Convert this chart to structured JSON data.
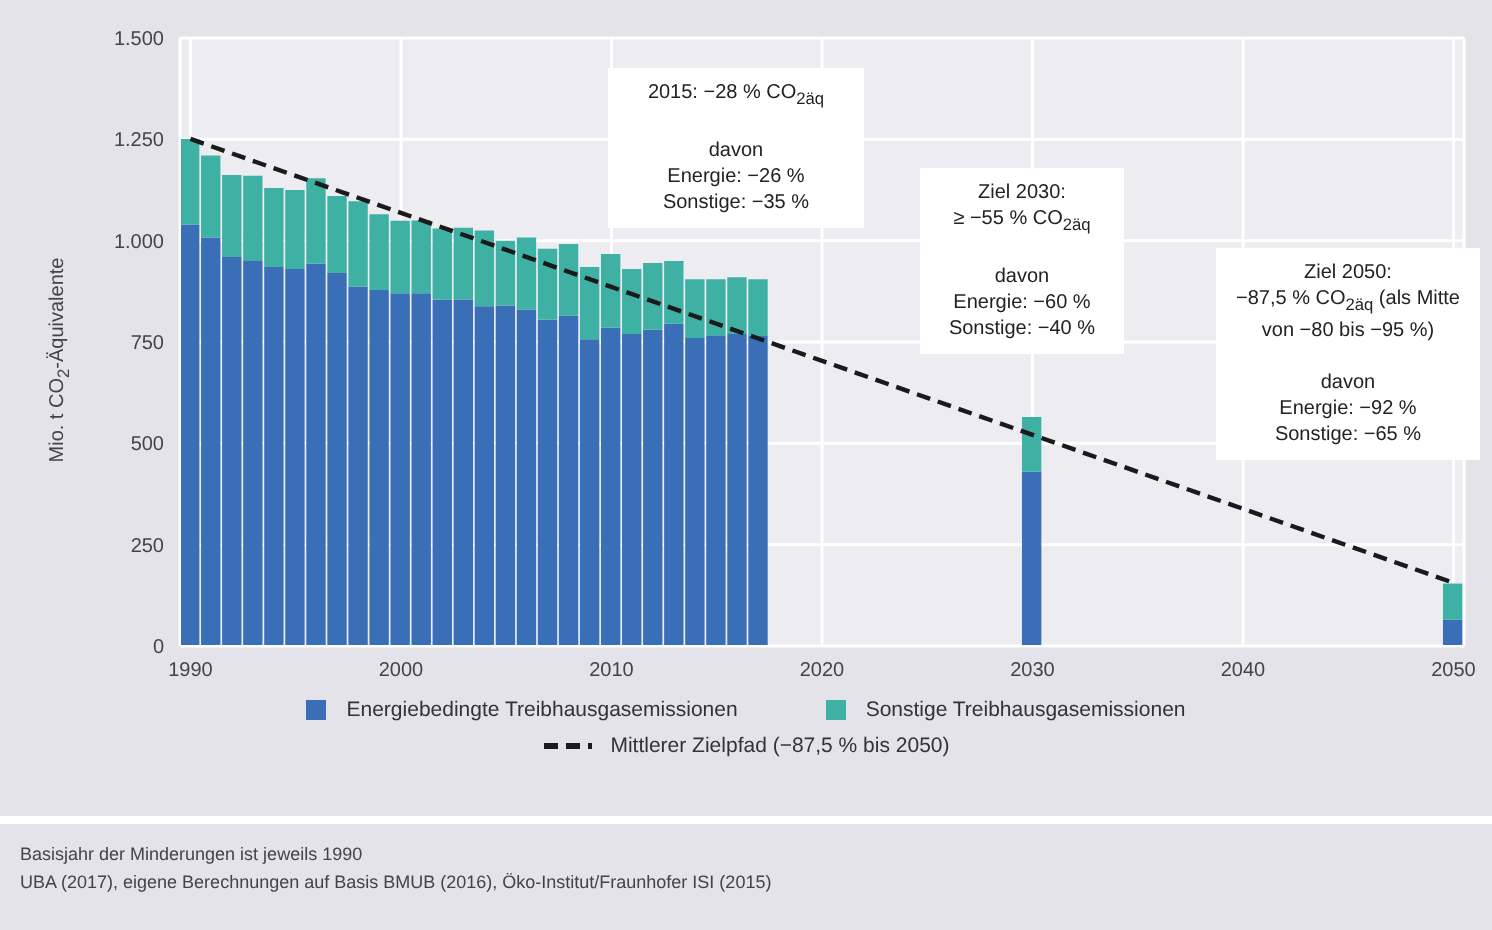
{
  "chart_data": {
    "type": "bar",
    "stacked": true,
    "ylabel": "Mio. t CO$_{2}$-Äquivalente",
    "x": [
      1990,
      1991,
      1992,
      1993,
      1994,
      1995,
      1996,
      1997,
      1998,
      1999,
      2000,
      2001,
      2002,
      2003,
      2004,
      2005,
      2006,
      2007,
      2008,
      2009,
      2010,
      2011,
      2012,
      2013,
      2014,
      2015,
      2016,
      2017,
      2030,
      2050
    ],
    "series": [
      {
        "name": "Energiebedingte Treibhausgasemissionen",
        "color": "#3a6fb8",
        "values": [
          1040,
          1008,
          960,
          950,
          935,
          930,
          943,
          920,
          887,
          878,
          870,
          870,
          854,
          855,
          838,
          840,
          830,
          805,
          815,
          757,
          785,
          770,
          780,
          795,
          760,
          765,
          770,
          765,
          430,
          65
        ]
      },
      {
        "name": "Sonstige Treibhausgasemissionen",
        "color": "#3fb0a4",
        "values": [
          211,
          202,
          202,
          210,
          195,
          195,
          211,
          190,
          210,
          187,
          179,
          180,
          176,
          177,
          187,
          160,
          178,
          175,
          177,
          178,
          182,
          160,
          165,
          155,
          145,
          140,
          140,
          140,
          135,
          89
        ]
      },
      {
        "name": "Mittlerer Zielpfad (−87,5 % bis 2050)",
        "type": "line",
        "line_style": "dashed",
        "color": "#1a1a1a",
        "x": [
          1990,
          2050
        ],
        "values": [
          1251,
          156
        ]
      }
    ],
    "xlim": [
      1989.5,
      2050.5
    ],
    "xticks": [
      1990,
      2000,
      2010,
      2020,
      2030,
      2040,
      2050
    ],
    "ylim": [
      0,
      1500
    ],
    "yticks": [
      0,
      250,
      500,
      750,
      {
        "value": 1000,
        "label": "1.000"
      },
      {
        "value": 1250,
        "label": "1.250"
      },
      {
        "value": 1500,
        "label": "1.500"
      }
    ],
    "grid": true,
    "legend": "bottom",
    "annotations": [
      "2015: −28 % CO$_{2äq}$\n\ndavon\nEnergie: −26 %\nSonstige: −35 %",
      "Ziel 2030:\n≥ −55 % CO$_{2äq}$\n\ndavon\nEnergie: −60 %\nSonstige: −40 %",
      "Ziel 2050:\n−87,5 % CO$_{2äq}$ (als Mitte\nvon −80 bis −95 %)\n\ndavon\nEnergie: −92 %\nSonstige: −65 %",
      "Basisjahr der Minderungen ist jeweils 1990",
      "UBA (2017), eigene Berechnungen auf Basis BMUB (2016), Öko-Institut/Fraunhofer ISI (2015)"
    ]
  }
}
